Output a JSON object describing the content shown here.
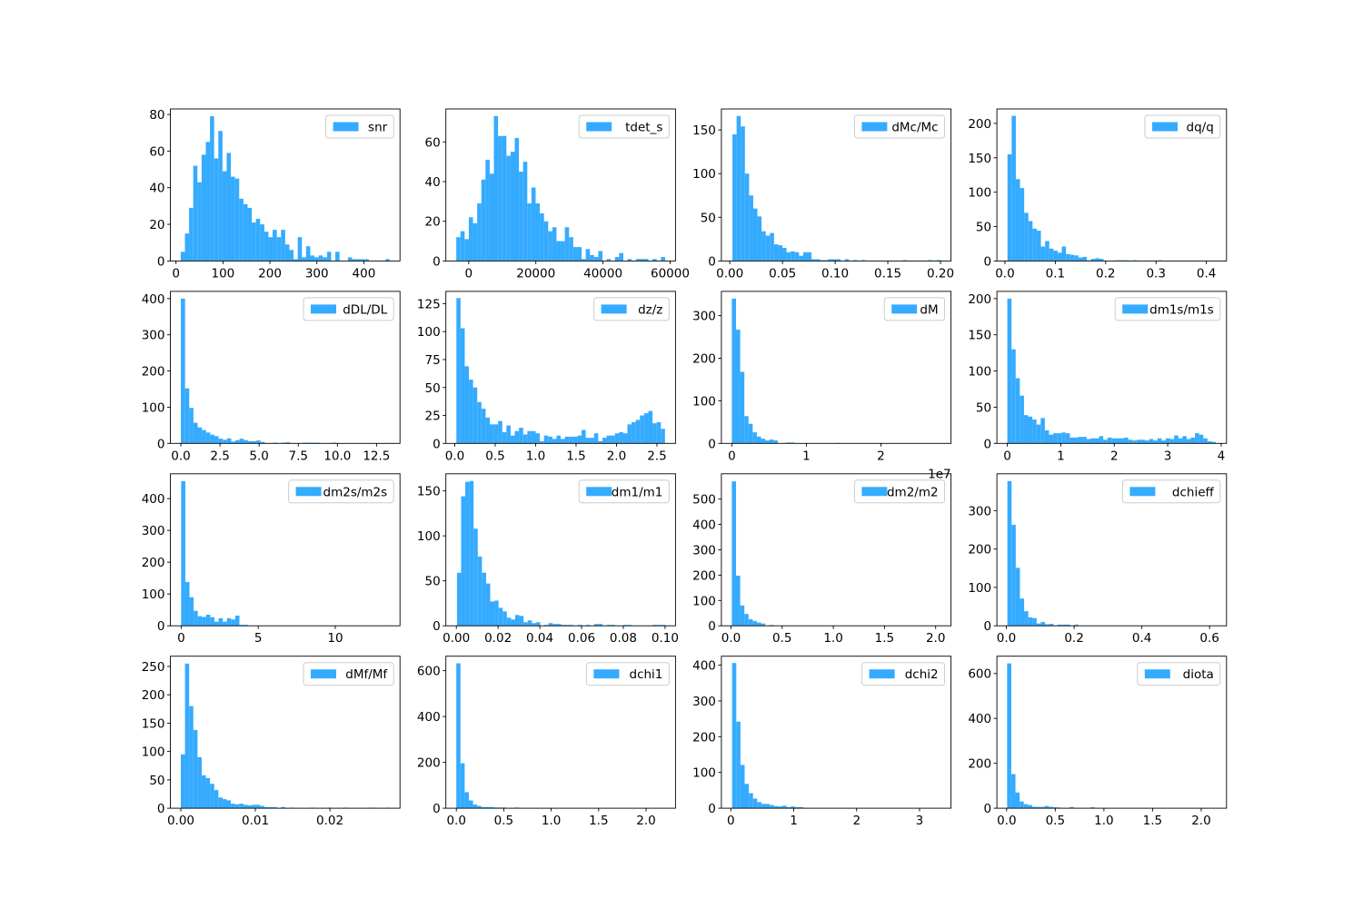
{
  "chart_data": [
    {
      "type": "bar",
      "label": "snr",
      "range": [
        10,
        455
      ],
      "bins": 50,
      "xlim": [
        -12,
        477
      ],
      "ylim": [
        0,
        83
      ],
      "xticks": [
        0,
        100,
        200,
        300,
        400
      ],
      "xtick_labels": [
        "0",
        "100",
        "200",
        "300",
        "400"
      ],
      "yticks": [
        0,
        20,
        40,
        60,
        80
      ],
      "ytick_labels": [
        "0",
        "20",
        "40",
        "60",
        "80"
      ],
      "counts": [
        5,
        15,
        29,
        52,
        43,
        58,
        65,
        79,
        56,
        71,
        49,
        59,
        46,
        45,
        34,
        31,
        29,
        21,
        23,
        20,
        16,
        13,
        17,
        13,
        17,
        9,
        6,
        1,
        13,
        2,
        8,
        3,
        2,
        3,
        2,
        5,
        0,
        5,
        0,
        0,
        2,
        1,
        1,
        1,
        1,
        0,
        0,
        0,
        0,
        1
      ]
    },
    {
      "type": "bar",
      "label": "tdet_s",
      "range": [
        -3700,
        58500
      ],
      "bins": 50,
      "xlim": [
        -6800,
        61600
      ],
      "ylim": [
        0,
        76.6
      ],
      "xticks": [
        0,
        20000,
        40000,
        60000
      ],
      "xtick_labels": [
        "0",
        "20000",
        "40000",
        "60000"
      ],
      "yticks": [
        0,
        20,
        40,
        60
      ],
      "ytick_labels": [
        "0",
        "20",
        "40",
        "60"
      ],
      "counts": [
        12,
        15,
        11,
        22,
        19,
        29,
        41,
        51,
        44,
        73,
        63,
        63,
        53,
        55,
        62,
        45,
        50,
        29,
        37,
        29,
        24,
        20,
        15,
        17,
        10,
        10,
        17,
        12,
        7,
        7,
        1,
        6,
        3,
        2,
        5,
        0,
        1,
        0,
        2,
        4,
        0,
        1,
        0,
        1,
        1,
        1,
        0,
        1,
        0,
        2
      ]
    },
    {
      "type": "bar",
      "label": "dMc/Mc",
      "range": [
        0.0025,
        0.2
      ],
      "bins": 50,
      "xlim": [
        -0.008,
        0.21
      ],
      "ylim": [
        0,
        174
      ],
      "xticks": [
        0,
        0.05,
        0.1,
        0.15,
        0.2
      ],
      "xtick_labels": [
        "0.00",
        "0.05",
        "0.10",
        "0.15",
        "0.20"
      ],
      "yticks": [
        0,
        50,
        100,
        150
      ],
      "ytick_labels": [
        "0",
        "50",
        "100",
        "150"
      ],
      "counts": [
        145,
        166,
        154,
        100,
        75,
        60,
        51,
        34,
        29,
        32,
        19,
        18,
        15,
        10,
        11,
        10,
        6,
        10,
        10,
        2,
        2,
        1,
        1,
        2,
        2,
        2,
        0,
        2,
        0,
        1,
        0,
        1,
        0,
        0,
        0,
        0,
        0,
        0,
        0,
        0,
        0,
        1,
        0,
        0,
        0,
        0,
        0,
        1,
        0,
        1
      ]
    },
    {
      "type": "bar",
      "label": "dq/q",
      "range": [
        0.005,
        0.42
      ],
      "bins": 50,
      "xlim": [
        -0.016,
        0.44
      ],
      "ylim": [
        0,
        221
      ],
      "xticks": [
        0,
        0.1,
        0.2,
        0.3,
        0.4
      ],
      "xtick_labels": [
        "0.0",
        "0.1",
        "0.2",
        "0.3",
        "0.4"
      ],
      "yticks": [
        0,
        50,
        100,
        150,
        200
      ],
      "ytick_labels": [
        "0",
        "50",
        "100",
        "150",
        "200"
      ],
      "counts": [
        155,
        211,
        119,
        106,
        70,
        58,
        47,
        44,
        21,
        29,
        18,
        15,
        12,
        21,
        10,
        9,
        8,
        5,
        6,
        1,
        3,
        4,
        3,
        0,
        0,
        0,
        1,
        1,
        1,
        0,
        1,
        0,
        0,
        0,
        0,
        0,
        1,
        0,
        0,
        0,
        0,
        0,
        0,
        0,
        0,
        0,
        0,
        0,
        0,
        0
      ]
    },
    {
      "type": "bar",
      "label": "dDL/DL",
      "range": [
        0,
        13.4
      ],
      "bins": 50,
      "xlim": [
        -0.67,
        14
      ],
      "ylim": [
        0,
        420
      ],
      "xticks": [
        0,
        2.5,
        5,
        7.5,
        10,
        12.5
      ],
      "xtick_labels": [
        "0.0",
        "2.5",
        "5.0",
        "7.5",
        "10.0",
        "12.5"
      ],
      "yticks": [
        0,
        100,
        200,
        300,
        400
      ],
      "ytick_labels": [
        "0",
        "100",
        "200",
        "300",
        "400"
      ],
      "counts": [
        400,
        152,
        98,
        57,
        44,
        37,
        30,
        24,
        20,
        13,
        10,
        14,
        5,
        9,
        13,
        9,
        6,
        6,
        8,
        4,
        1,
        0,
        2,
        0,
        2,
        3,
        0,
        0,
        0,
        2,
        2,
        2,
        2,
        0,
        0,
        0,
        2,
        0,
        0,
        0,
        0,
        0,
        0,
        0,
        0,
        0,
        0,
        0,
        0,
        1
      ]
    },
    {
      "type": "bar",
      "label": "dz/z",
      "range": [
        0.02,
        2.6
      ],
      "bins": 50,
      "xlim": [
        -0.11,
        2.73
      ],
      "ylim": [
        0,
        136
      ],
      "xticks": [
        0,
        0.5,
        1,
        1.5,
        2,
        2.5
      ],
      "xtick_labels": [
        "0.0",
        "0.5",
        "1.0",
        "1.5",
        "2.0",
        "2.5"
      ],
      "yticks": [
        0,
        25,
        50,
        75,
        100,
        125
      ],
      "ytick_labels": [
        "0",
        "25",
        "50",
        "75",
        "100",
        "125"
      ],
      "counts": [
        130,
        103,
        69,
        57,
        50,
        37,
        31,
        23,
        17,
        17,
        20,
        10,
        16,
        7,
        11,
        14,
        8,
        11,
        11,
        9,
        2,
        7,
        6,
        4,
        7,
        4,
        6,
        6,
        6,
        7,
        12,
        5,
        5,
        9,
        2,
        5,
        7,
        7,
        9,
        10,
        9,
        17,
        19,
        21,
        25,
        27,
        29,
        18,
        19,
        13
      ]
    },
    {
      "type": "bar",
      "label": "dM",
      "range": [
        0,
        2.8
      ],
      "bins": 50,
      "xlim": [
        -0.14,
        2.94
      ],
      "ylim": [
        0,
        357
      ],
      "offset_text": "1e7",
      "xticks": [
        0,
        1,
        2
      ],
      "xtick_labels": [
        "0",
        "1",
        "2"
      ],
      "yticks": [
        0,
        100,
        200,
        300
      ],
      "ytick_labels": [
        "0",
        "100",
        "200",
        "300"
      ],
      "counts": [
        340,
        267,
        168,
        64,
        46,
        26,
        16,
        11,
        7,
        9,
        7,
        0,
        0,
        2,
        2,
        0,
        0,
        0,
        0,
        0,
        0,
        0,
        0,
        0,
        0,
        1,
        0,
        0,
        0,
        0,
        0,
        0,
        0,
        0,
        0,
        0,
        0,
        0,
        0,
        0,
        0,
        0,
        0,
        0,
        0,
        0,
        0,
        0,
        0,
        0
      ]
    },
    {
      "type": "bar",
      "label": "dm1s/m1s",
      "range": [
        0,
        3.9
      ],
      "bins": 50,
      "xlim": [
        -0.195,
        4.1
      ],
      "ylim": [
        0,
        210
      ],
      "xticks": [
        0,
        1,
        2,
        3,
        4
      ],
      "xtick_labels": [
        "0",
        "1",
        "2",
        "3",
        "4"
      ],
      "yticks": [
        0,
        50,
        100,
        150,
        200
      ],
      "ytick_labels": [
        "0",
        "50",
        "100",
        "150",
        "200"
      ],
      "counts": [
        200,
        130,
        90,
        66,
        39,
        37,
        33,
        26,
        35,
        18,
        12,
        14,
        14,
        15,
        14,
        8,
        8,
        9,
        9,
        6,
        7,
        7,
        10,
        5,
        8,
        7,
        7,
        7,
        8,
        5,
        4,
        5,
        5,
        4,
        6,
        4,
        7,
        4,
        7,
        6,
        11,
        7,
        10,
        6,
        8,
        14,
        12,
        7,
        3,
        2
      ]
    },
    {
      "type": "bar",
      "label": "dm2s/m2s",
      "range": [
        0,
        13.5
      ],
      "bins": 50,
      "xlim": [
        -0.7,
        14.2
      ],
      "ylim": [
        0,
        478
      ],
      "xticks": [
        0,
        5,
        10
      ],
      "xtick_labels": [
        "0",
        "5",
        "10"
      ],
      "yticks": [
        0,
        100,
        200,
        300,
        400
      ],
      "ytick_labels": [
        "0",
        "100",
        "200",
        "300",
        "400"
      ],
      "counts": [
        455,
        138,
        90,
        47,
        30,
        28,
        35,
        27,
        13,
        24,
        13,
        24,
        20,
        32,
        3,
        3,
        0,
        0,
        0,
        0,
        0,
        0,
        0,
        0,
        0,
        0,
        0,
        0,
        0,
        0,
        0,
        0,
        0,
        0,
        0,
        0,
        0,
        0,
        0,
        0,
        0,
        0,
        0,
        0,
        0,
        0,
        0,
        0,
        0,
        1
      ]
    },
    {
      "type": "bar",
      "label": "dm1/m1",
      "range": [
        0.0003,
        0.1
      ],
      "bins": 50,
      "xlim": [
        -0.005,
        0.105
      ],
      "ylim": [
        0,
        169
      ],
      "xticks": [
        0,
        0.02,
        0.04,
        0.06,
        0.08,
        0.1
      ],
      "xtick_labels": [
        "0.00",
        "0.02",
        "0.04",
        "0.06",
        "0.08",
        "0.10"
      ],
      "yticks": [
        0,
        50,
        100,
        150
      ],
      "ytick_labels": [
        "0",
        "50",
        "100",
        "150"
      ],
      "counts": [
        59,
        144,
        160,
        161,
        108,
        77,
        59,
        47,
        27,
        28,
        20,
        16,
        9,
        7,
        12,
        11,
        4,
        6,
        3,
        4,
        0,
        1,
        3,
        2,
        2,
        1,
        1,
        1,
        0,
        1,
        0,
        1,
        0,
        2,
        2,
        0,
        1,
        1,
        0,
        0,
        1,
        1,
        0,
        0,
        0,
        0,
        0,
        1,
        1,
        1
      ]
    },
    {
      "type": "bar",
      "label": "dm2/m2",
      "range": [
        0.008,
        2.05
      ],
      "bins": 50,
      "xlim": [
        -0.094,
        2.15
      ],
      "ylim": [
        0,
        600
      ],
      "xticks": [
        0,
        0.5,
        1,
        1.5,
        2
      ],
      "xtick_labels": [
        "0.0",
        "0.5",
        "1.0",
        "1.5",
        "2.0"
      ],
      "yticks": [
        0,
        100,
        200,
        300,
        400,
        500
      ],
      "ytick_labels": [
        "0",
        "100",
        "200",
        "300",
        "400",
        "500"
      ],
      "counts": [
        570,
        198,
        80,
        47,
        26,
        19,
        13,
        9,
        0,
        3,
        0,
        0,
        0,
        0,
        0,
        0,
        0,
        0,
        0,
        0,
        0,
        0,
        0,
        0,
        0,
        0,
        0,
        0,
        0,
        0,
        0,
        0,
        0,
        0,
        0,
        0,
        0,
        0,
        0,
        0,
        0,
        0,
        0,
        0,
        0,
        0,
        0,
        0,
        0,
        1
      ]
    },
    {
      "type": "bar",
      "label": "dchieff",
      "range": [
        0.003,
        0.62
      ],
      "bins": 50,
      "xlim": [
        -0.028,
        0.65
      ],
      "ylim": [
        0,
        396
      ],
      "xticks": [
        0,
        0.2,
        0.4,
        0.6
      ],
      "xtick_labels": [
        "0.0",
        "0.2",
        "0.4",
        "0.6"
      ],
      "yticks": [
        0,
        100,
        200,
        300
      ],
      "ytick_labels": [
        "0",
        "100",
        "200",
        "300"
      ],
      "counts": [
        377,
        263,
        151,
        71,
        38,
        22,
        20,
        6,
        10,
        4,
        5,
        1,
        3,
        3,
        3,
        0,
        3,
        0,
        0,
        0,
        0,
        0,
        0,
        0,
        0,
        0,
        0,
        0,
        0,
        0,
        0,
        0,
        0,
        0,
        0,
        0,
        0,
        0,
        0,
        0,
        0,
        0,
        0,
        0,
        0,
        0,
        0,
        0,
        0,
        0
      ]
    },
    {
      "type": "bar",
      "label": "dMf/Mf",
      "range": [
        0,
        0.028
      ],
      "bins": 50,
      "xlim": [
        -0.0014,
        0.0294
      ],
      "ylim": [
        0,
        268
      ],
      "xticks": [
        0,
        0.01,
        0.02
      ],
      "xtick_labels": [
        "0.00",
        "0.01",
        "0.02"
      ],
      "yticks": [
        0,
        50,
        100,
        150,
        200,
        250
      ],
      "ytick_labels": [
        "0",
        "50",
        "100",
        "150",
        "200",
        "250"
      ],
      "counts": [
        95,
        255,
        180,
        138,
        90,
        58,
        53,
        43,
        32,
        19,
        16,
        14,
        8,
        7,
        8,
        6,
        5,
        6,
        6,
        4,
        2,
        2,
        2,
        0,
        2,
        0,
        1,
        0,
        0,
        0,
        0,
        1,
        0,
        0,
        0,
        1,
        0,
        0,
        0,
        1,
        0,
        0,
        0,
        0,
        0,
        1,
        1,
        0,
        0,
        1
      ]
    },
    {
      "type": "bar",
      "label": "dchi1",
      "range": [
        0,
        2.2
      ],
      "bins": 50,
      "xlim": [
        -0.11,
        2.31
      ],
      "ylim": [
        0,
        663
      ],
      "xticks": [
        0,
        0.5,
        1,
        1.5,
        2
      ],
      "xtick_labels": [
        "0.0",
        "0.5",
        "1.0",
        "1.5",
        "2.0"
      ],
      "yticks": [
        0,
        200,
        400,
        600
      ],
      "ytick_labels": [
        "0",
        "200",
        "400",
        "600"
      ],
      "counts": [
        632,
        196,
        70,
        34,
        16,
        10,
        5,
        5,
        5,
        3,
        3,
        3,
        0,
        0,
        3,
        0,
        0,
        0,
        0,
        0,
        0,
        0,
        0,
        0,
        0,
        0,
        0,
        0,
        0,
        0,
        0,
        0,
        0,
        0,
        0,
        0,
        0,
        0,
        0,
        0,
        0,
        0,
        0,
        0,
        0,
        0,
        0,
        0,
        0,
        0
      ]
    },
    {
      "type": "bar",
      "label": "dchi2",
      "range": [
        0.02,
        3.35
      ],
      "bins": 50,
      "xlim": [
        -0.15,
        3.5
      ],
      "ylim": [
        0,
        425
      ],
      "xticks": [
        0,
        1,
        2,
        3
      ],
      "xtick_labels": [
        "0",
        "1",
        "2",
        "3"
      ],
      "yticks": [
        0,
        100,
        200,
        300,
        400
      ],
      "ytick_labels": [
        "0",
        "100",
        "200",
        "300",
        "400"
      ],
      "counts": [
        406,
        242,
        121,
        68,
        42,
        27,
        17,
        12,
        12,
        9,
        6,
        5,
        7,
        3,
        5,
        3,
        3,
        0,
        0,
        0,
        0,
        0,
        0,
        0,
        0,
        0,
        0,
        0,
        0,
        0,
        0,
        0,
        0,
        0,
        0,
        0,
        0,
        0,
        0,
        0,
        0,
        0,
        0,
        0,
        0,
        0,
        0,
        0,
        0,
        0
      ]
    },
    {
      "type": "bar",
      "label": "diota",
      "range": [
        0.005,
        2.15
      ],
      "bins": 50,
      "xlim": [
        -0.1,
        2.26
      ],
      "ylim": [
        0,
        677
      ],
      "xticks": [
        0,
        0.5,
        1,
        1.5,
        2
      ],
      "xtick_labels": [
        "0.0",
        "0.5",
        "1.0",
        "1.5",
        "2.0"
      ],
      "yticks": [
        0,
        200,
        400,
        600
      ],
      "ytick_labels": [
        "0",
        "200",
        "400",
        "600"
      ],
      "counts": [
        645,
        152,
        70,
        30,
        18,
        14,
        6,
        6,
        6,
        10,
        6,
        4,
        3,
        0,
        0,
        5,
        0,
        0,
        0,
        0,
        4,
        0,
        0,
        0,
        0,
        0,
        0,
        0,
        0,
        0,
        0,
        0,
        0,
        0,
        0,
        0,
        0,
        0,
        0,
        0,
        0,
        0,
        0,
        0,
        0,
        0,
        0,
        0,
        0,
        0
      ]
    }
  ],
  "colors": {
    "bar": "#35abff",
    "axis": "#000000",
    "legend_border": "#cccccc"
  }
}
